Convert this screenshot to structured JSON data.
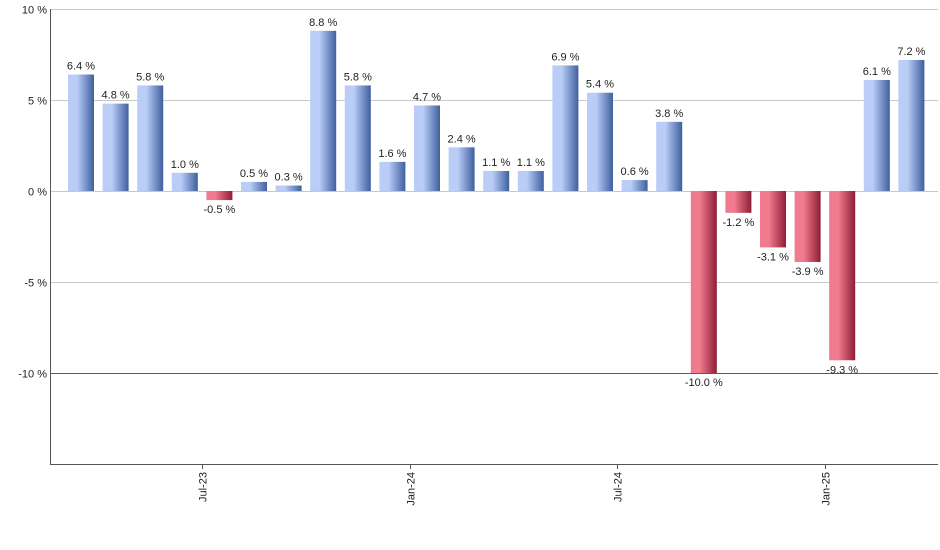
{
  "chart_data": {
    "type": "bar",
    "title": "",
    "xlabel": "",
    "ylabel": "",
    "ylim": [
      -15,
      10
    ],
    "y_ticks": [
      10,
      5,
      0,
      -5,
      -10
    ],
    "y_tick_labels": [
      "10 %",
      "5 %",
      "0 %",
      "-5 %",
      "-10 %"
    ],
    "value_suffix": " %",
    "reference_line": -10,
    "grid": true,
    "legend": "none",
    "x_tick_labels": [
      {
        "label": "Jul-23",
        "index": 3.5
      },
      {
        "label": "Jan-24",
        "index": 9.5
      },
      {
        "label": "Jul-24",
        "index": 15.5
      },
      {
        "label": "Jan-25",
        "index": 21.5
      }
    ],
    "values": [
      6.4,
      4.8,
      5.8,
      1.0,
      -0.5,
      0.5,
      0.3,
      8.8,
      5.8,
      1.6,
      4.7,
      2.4,
      1.1,
      1.1,
      6.9,
      5.4,
      0.6,
      3.8,
      -10.0,
      -1.2,
      -3.1,
      -3.9,
      -9.3,
      6.1,
      7.2
    ],
    "labels": [
      "6.4 %",
      "4.8 %",
      "5.8 %",
      "1.0 %",
      "-0.5 %",
      "0.5 %",
      "0.3 %",
      "8.8 %",
      "5.8 %",
      "1.6 %",
      "4.7 %",
      "2.4 %",
      "1.1 %",
      "1.1 %",
      "6.9 %",
      "5.4 %",
      "0.6 %",
      "3.8 %",
      "-10.0 %",
      "-1.2 %",
      "-3.1 %",
      "-3.9 %",
      "-9.3 %",
      "6.1 %",
      "7.2 %"
    ],
    "colors": {
      "positive_light": "#b9cdf7",
      "positive_dark": "#3f5f9e",
      "negative_light": "#f07a8e",
      "negative_dark": "#8e1d36",
      "grid": "#c8c8c8",
      "axis": "#555555",
      "reference_line": "#2e7d2e"
    }
  }
}
